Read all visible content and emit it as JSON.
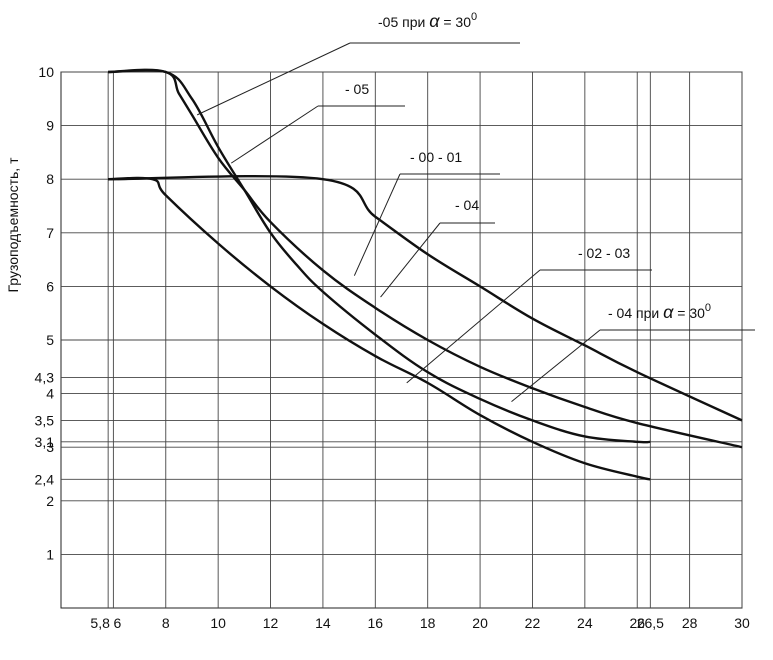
{
  "chart_data": {
    "type": "line",
    "title": "",
    "ylabel": "Грузоподъемность, т",
    "xlabel": "",
    "xlim": [
      4,
      30
    ],
    "ylim": [
      0,
      10
    ],
    "grid": true,
    "x_ticks": [
      "5,8",
      "6",
      "8",
      "10",
      "12",
      "14",
      "16",
      "18",
      "20",
      "22",
      "24",
      "26",
      "26,5",
      "28",
      "30"
    ],
    "x_tick_values": [
      5.8,
      6,
      8,
      10,
      12,
      14,
      16,
      18,
      20,
      22,
      24,
      26,
      26.5,
      28,
      30
    ],
    "y_ticks": [
      "1",
      "2",
      "2,4",
      "3",
      "3,1",
      "3,5",
      "4",
      "4,3",
      "5",
      "6",
      "7",
      "8",
      "9",
      "10"
    ],
    "y_tick_values": [
      1,
      2,
      2.4,
      3,
      3.1,
      3.5,
      4,
      4.3,
      5,
      6,
      7,
      8,
      9,
      10
    ],
    "series": [
      {
        "name": "-05 при α = 30°",
        "x": [
          5.8,
          8,
          8.5,
          9,
          10,
          11,
          12,
          14,
          16,
          18,
          20,
          22,
          24,
          26,
          30
        ],
        "y": [
          10,
          10,
          9.6,
          9.2,
          8.4,
          7.8,
          7.2,
          6.3,
          5.6,
          5.0,
          4.5,
          4.1,
          3.75,
          3.45,
          3.0
        ]
      },
      {
        "name": "- 05",
        "x": [
          5.8,
          8,
          9,
          10,
          11,
          12,
          13,
          14,
          16,
          18,
          20,
          22,
          24,
          26,
          26.5
        ],
        "y": [
          10,
          10,
          9.5,
          8.6,
          7.8,
          7.0,
          6.4,
          5.9,
          5.1,
          4.4,
          3.9,
          3.5,
          3.2,
          3.1,
          3.1
        ]
      },
      {
        "name": "- 00 - 01",
        "x": [
          5.8,
          14,
          16,
          18,
          20,
          22,
          24,
          26,
          30
        ],
        "y": [
          8,
          8,
          7.3,
          6.6,
          6.0,
          5.4,
          4.9,
          4.4,
          3.5
        ]
      },
      {
        "name": "- 04",
        "x": [
          5.8,
          7.5,
          8,
          10,
          12,
          14,
          16,
          18,
          20,
          22,
          24,
          26,
          26.5
        ],
        "y": [
          8,
          8,
          7.7,
          6.8,
          6.0,
          5.3,
          4.7,
          4.2,
          3.6,
          3.1,
          2.7,
          2.45,
          2.4
        ]
      }
    ],
    "annotations": [
      {
        "prefix": "-05 при",
        "symbol": "α",
        "eq": "=",
        "value": "30",
        "sup": "0",
        "points_to": "-05 при α = 30°"
      },
      {
        "text": "- 05",
        "points_to": "- 05"
      },
      {
        "text": "- 00  - 01",
        "points_to": "- 00 - 01"
      },
      {
        "text": "- 04",
        "points_to": "- 04"
      },
      {
        "text": "- 02  - 03",
        "points_to": "- 02 - 03"
      },
      {
        "prefix": "- 04 при",
        "symbol": "α",
        "eq": "=",
        "value": "30",
        "sup": "0",
        "points_to": "- 04 при α = 30°"
      }
    ]
  }
}
